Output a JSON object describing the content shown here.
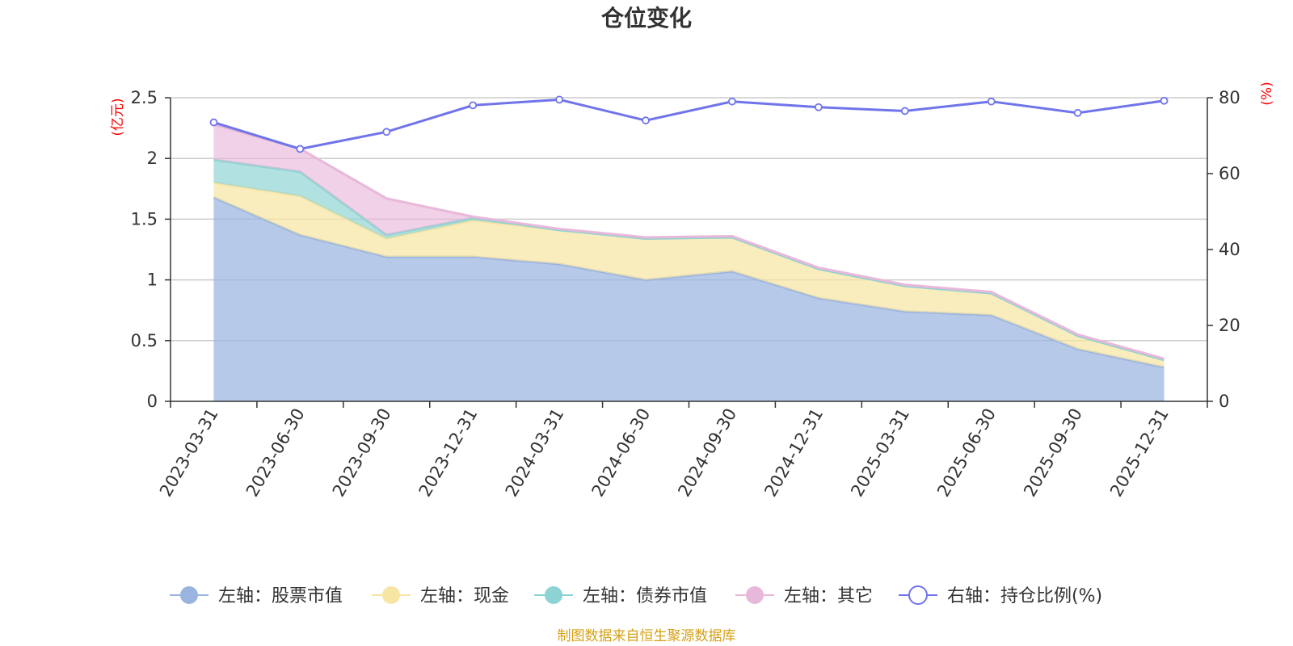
{
  "chart_data": {
    "type": "area",
    "title": "仓位变化",
    "categories": [
      "2023-03-31",
      "2023-06-30",
      "2023-09-30",
      "2023-12-31",
      "2024-03-31",
      "2024-06-30",
      "2024-09-30",
      "2024-12-31",
      "2025-03-31",
      "2025-06-30",
      "2025-09-30",
      "2025-12-31"
    ],
    "left_axis": {
      "unit": "(亿元)",
      "ylim": [
        0,
        2.5
      ],
      "ticks": [
        "0",
        "0.5",
        "1",
        "1.5",
        "2",
        "2.5"
      ],
      "tick_values": [
        0,
        0.5,
        1,
        1.5,
        2,
        2.5
      ]
    },
    "right_axis": {
      "unit": "(%)",
      "ylim": [
        0,
        80
      ],
      "ticks": [
        "0",
        "20",
        "40",
        "60",
        "80"
      ],
      "tick_values": [
        0,
        20,
        40,
        60,
        80
      ]
    },
    "series": [
      {
        "name": "左轴：股票市值",
        "axis": "left",
        "type": "area",
        "stacked": true,
        "color": "#9ab4e0",
        "values": [
          1.68,
          1.37,
          1.19,
          1.19,
          1.13,
          1.0,
          1.07,
          0.85,
          0.74,
          0.71,
          0.43,
          0.28
        ]
      },
      {
        "name": "左轴：现金",
        "axis": "left",
        "type": "area",
        "stacked": true,
        "color": "#f7e5a4",
        "values": [
          0.12,
          0.32,
          0.15,
          0.3,
          0.28,
          0.34,
          0.28,
          0.24,
          0.21,
          0.18,
          0.11,
          0.06
        ]
      },
      {
        "name": "左轴：债券市值",
        "axis": "left",
        "type": "area",
        "stacked": true,
        "color": "#8dd3d3",
        "values": [
          0.19,
          0.2,
          0.03,
          0.02,
          0.0,
          0.0,
          0.0,
          0.0,
          0.0,
          0.0,
          0.0,
          0.0
        ]
      },
      {
        "name": "左轴：其它",
        "axis": "left",
        "type": "area",
        "stacked": true,
        "color": "#e8b8da",
        "values": [
          0.29,
          0.19,
          0.3,
          0.01,
          0.01,
          0.01,
          0.01,
          0.01,
          0.01,
          0.01,
          0.01,
          0.01
        ]
      },
      {
        "name": "右轴：持仓比例(%)",
        "axis": "right",
        "type": "line",
        "color": "#7074ea",
        "values": [
          73.5,
          66.5,
          71,
          78,
          79.5,
          74,
          79,
          77.5,
          76.5,
          79,
          76,
          79.2
        ]
      }
    ],
    "legend_position": "bottom",
    "grid": true
  },
  "footer": {
    "source": "制图数据来自恒生聚源数据库"
  }
}
